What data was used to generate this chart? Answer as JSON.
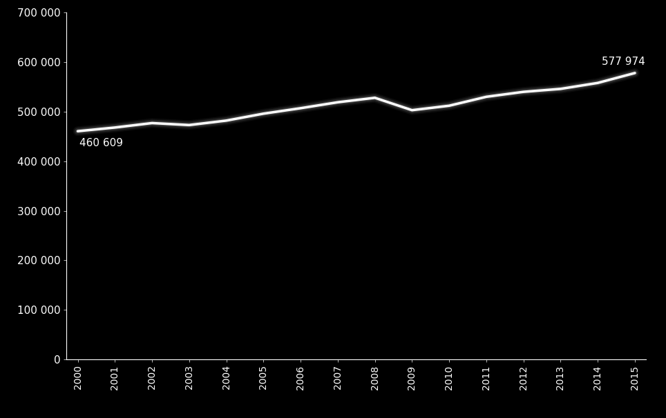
{
  "years": [
    2000,
    2001,
    2002,
    2003,
    2004,
    2005,
    2006,
    2007,
    2008,
    2009,
    2010,
    2011,
    2012,
    2013,
    2014,
    2015
  ],
  "values": [
    460609,
    468000,
    477000,
    473000,
    482000,
    496000,
    507000,
    519000,
    528000,
    503000,
    512000,
    530000,
    540000,
    546000,
    558000,
    577974
  ],
  "line_color": "#ffffff",
  "bg_color": "#000000",
  "text_color": "#ffffff",
  "label_start": "460 609",
  "label_end": "577 974",
  "ylim": [
    0,
    700000
  ],
  "yticks": [
    0,
    100000,
    200000,
    300000,
    400000,
    500000,
    600000,
    700000
  ],
  "ytick_labels": [
    "0",
    "100 000",
    "200 000",
    "300 000",
    "400 000",
    "500 000",
    "600 000",
    "700 000"
  ],
  "line_width": 2.5,
  "figsize": [
    9.64,
    6.06
  ],
  "dpi": 100
}
